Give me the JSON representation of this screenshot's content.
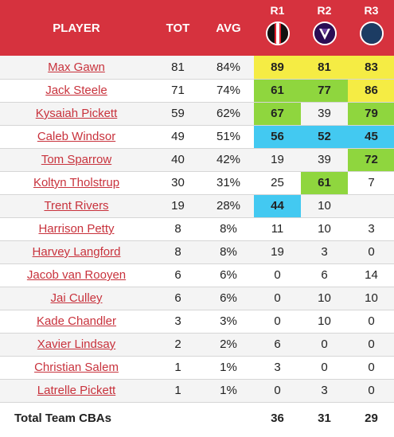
{
  "header": {
    "player": "PLAYER",
    "tot": "TOT",
    "avg": "AVG",
    "rounds": [
      {
        "label": "R1",
        "logo": "st-kilda-logo",
        "colors": [
          "#111111",
          "#e4222f",
          "#ffffff"
        ]
      },
      {
        "label": "R2",
        "logo": "fremantle-logo",
        "colors": [
          "#2a0d54",
          "#ffffff"
        ]
      },
      {
        "label": "R3",
        "logo": "geelong-logo",
        "colors": [
          "#1c3c63",
          "#ffffff"
        ]
      }
    ]
  },
  "colors": {
    "header_bg": "#d6323e",
    "yellow": "#f5ec44",
    "green": "#8fd63e",
    "cyan": "#43c9f1",
    "link": "#c8323c"
  },
  "rows": [
    {
      "player": "Max Gawn",
      "tot": "81",
      "avg": "84%",
      "r": [
        "89",
        "81",
        "83"
      ],
      "hl": [
        "yellow",
        "yellow",
        "yellow"
      ]
    },
    {
      "player": "Jack Steele",
      "tot": "71",
      "avg": "74%",
      "r": [
        "61",
        "77",
        "86"
      ],
      "hl": [
        "green",
        "green",
        "yellow"
      ]
    },
    {
      "player": "Kysaiah Pickett",
      "tot": "59",
      "avg": "62%",
      "r": [
        "67",
        "39",
        "79"
      ],
      "hl": [
        "green",
        "",
        "green"
      ]
    },
    {
      "player": "Caleb Windsor",
      "tot": "49",
      "avg": "51%",
      "r": [
        "56",
        "52",
        "45"
      ],
      "hl": [
        "cyan",
        "cyan",
        "cyan"
      ]
    },
    {
      "player": "Tom Sparrow",
      "tot": "40",
      "avg": "42%",
      "r": [
        "19",
        "39",
        "72"
      ],
      "hl": [
        "",
        "",
        "green"
      ]
    },
    {
      "player": "Koltyn Tholstrup",
      "tot": "30",
      "avg": "31%",
      "r": [
        "25",
        "61",
        "7"
      ],
      "hl": [
        "",
        "green",
        ""
      ]
    },
    {
      "player": "Trent Rivers",
      "tot": "19",
      "avg": "28%",
      "r": [
        "44",
        "10",
        ""
      ],
      "hl": [
        "cyan",
        "",
        ""
      ]
    },
    {
      "player": "Harrison Petty",
      "tot": "8",
      "avg": "8%",
      "r": [
        "11",
        "10",
        "3"
      ],
      "hl": [
        "",
        "",
        ""
      ]
    },
    {
      "player": "Harvey Langford",
      "tot": "8",
      "avg": "8%",
      "r": [
        "19",
        "3",
        "0"
      ],
      "hl": [
        "",
        "",
        ""
      ]
    },
    {
      "player": "Jacob van Rooyen",
      "tot": "6",
      "avg": "6%",
      "r": [
        "0",
        "6",
        "14"
      ],
      "hl": [
        "",
        "",
        ""
      ]
    },
    {
      "player": "Jai Culley",
      "tot": "6",
      "avg": "6%",
      "r": [
        "0",
        "10",
        "10"
      ],
      "hl": [
        "",
        "",
        ""
      ]
    },
    {
      "player": "Kade Chandler",
      "tot": "3",
      "avg": "3%",
      "r": [
        "0",
        "10",
        "0"
      ],
      "hl": [
        "",
        "",
        ""
      ]
    },
    {
      "player": "Xavier Lindsay",
      "tot": "2",
      "avg": "2%",
      "r": [
        "6",
        "0",
        "0"
      ],
      "hl": [
        "",
        "",
        ""
      ]
    },
    {
      "player": "Christian Salem",
      "tot": "1",
      "avg": "1%",
      "r": [
        "3",
        "0",
        "0"
      ],
      "hl": [
        "",
        "",
        ""
      ]
    },
    {
      "player": "Latrelle Pickett",
      "tot": "1",
      "avg": "1%",
      "r": [
        "0",
        "3",
        "0"
      ],
      "hl": [
        "",
        "",
        ""
      ]
    }
  ],
  "footer": {
    "label": "Total Team CBAs",
    "r": [
      "36",
      "31",
      "29"
    ]
  }
}
